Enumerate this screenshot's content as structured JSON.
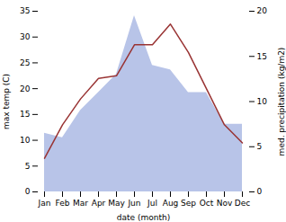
{
  "chart_data": {
    "type": "line",
    "categories": [
      "Jan",
      "Feb",
      "Mar",
      "Apr",
      "May",
      "Jun",
      "Jul",
      "Aug",
      "Sep",
      "Oct",
      "Nov",
      "Dec"
    ],
    "series": [
      {
        "type": "area",
        "axis": "y2",
        "color": "#b8c4e8",
        "values": [
          6.5,
          6.0,
          9.0,
          11.0,
          13.0,
          19.5,
          14.0,
          13.5,
          11.0,
          11.0,
          7.5,
          7.5
        ]
      },
      {
        "type": "line",
        "color": "#993333",
        "values": [
          6.5,
          13.0,
          18.0,
          22.0,
          22.5,
          28.5,
          28.5,
          32.5,
          27.0,
          20.0,
          13.0,
          9.5
        ]
      }
    ],
    "xlabel": "date (month)",
    "ylabel": "max temp (C)",
    "y2label": "med. precipitation (kg/m2)",
    "ylim": [
      0,
      35
    ],
    "yticks": [
      0,
      5,
      10,
      15,
      20,
      25,
      30,
      35
    ],
    "y2lim": [
      0,
      20
    ],
    "y2ticks": [
      0,
      5,
      10,
      15,
      20
    ]
  }
}
